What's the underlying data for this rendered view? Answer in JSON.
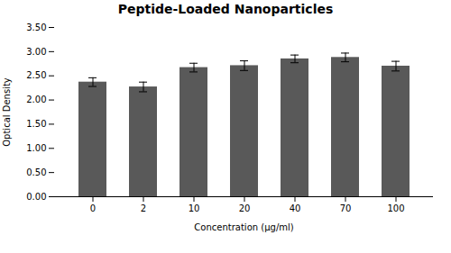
{
  "chart_data": {
    "type": "bar",
    "title": "Peptide-Loaded Nanoparticles",
    "xlabel": "Concentration (μg/ml)",
    "ylabel": "Optical Density",
    "categories": [
      "0",
      "2",
      "10",
      "20",
      "40",
      "70",
      "100"
    ],
    "values": [
      2.37,
      2.27,
      2.67,
      2.71,
      2.85,
      2.88,
      2.7
    ],
    "errors": [
      0.09,
      0.1,
      0.09,
      0.1,
      0.08,
      0.09,
      0.1
    ],
    "color": "#595959",
    "ylim": [
      0.0,
      3.5
    ],
    "yticks": [
      {
        "value": 0.0,
        "label": "0.00"
      },
      {
        "value": 0.5,
        "label": "0.50"
      },
      {
        "value": 1.0,
        "label": "1.00"
      },
      {
        "value": 1.5,
        "label": "1.50"
      },
      {
        "value": 2.0,
        "label": "2.00"
      },
      {
        "value": 2.5,
        "label": "2.50"
      },
      {
        "value": 3.0,
        "label": "3.00"
      },
      {
        "value": 3.5,
        "label": "3.50"
      }
    ],
    "grid": false
  }
}
